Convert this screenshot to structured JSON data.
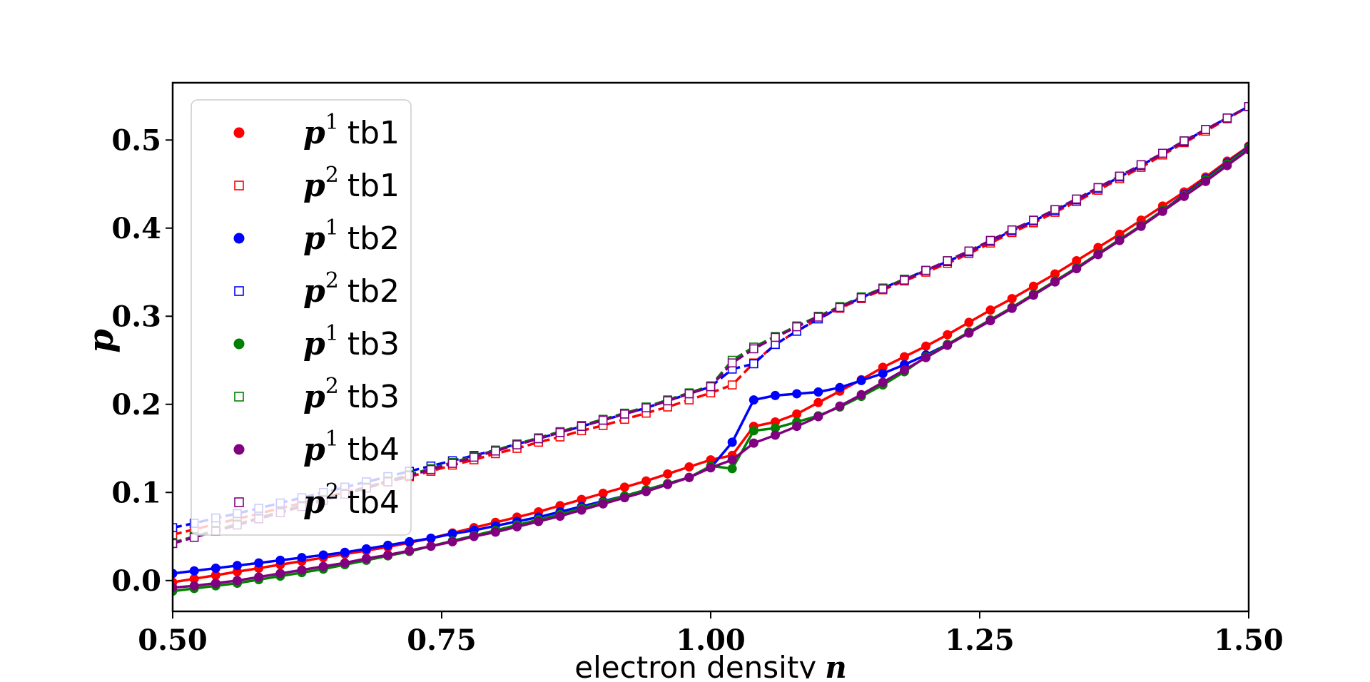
{
  "chart_data": {
    "type": "line",
    "title": "",
    "xlabel_text": "electron density",
    "xlabel_var": "n",
    "ylabel": "p",
    "xlim": [
      0.5,
      1.5
    ],
    "ylim": [
      -0.035,
      0.565
    ],
    "xticks": [
      0.5,
      0.75,
      1.0,
      1.25,
      1.5
    ],
    "xtick_labels": [
      "0.50",
      "0.75",
      "1.00",
      "1.25",
      "1.50"
    ],
    "yticks": [
      0.0,
      0.1,
      0.2,
      0.3,
      0.4,
      0.5
    ],
    "ytick_labels": [
      "0.0",
      "0.1",
      "0.2",
      "0.3",
      "0.4",
      "0.5"
    ],
    "legend_position": "upper-left",
    "series": [
      {
        "id": "p1-tb1",
        "symbol": "p",
        "superscript": "1",
        "tb": "tb1",
        "color": "#ff0000",
        "marker": "circle",
        "linestyle": "solid",
        "x": [
          0.5,
          0.52,
          0.54,
          0.56,
          0.58,
          0.6,
          0.62,
          0.64,
          0.66,
          0.68,
          0.7,
          0.72,
          0.74,
          0.76,
          0.78,
          0.8,
          0.82,
          0.84,
          0.86,
          0.88,
          0.9,
          0.92,
          0.94,
          0.96,
          0.98,
          1.0,
          1.02,
          1.04,
          1.06,
          1.08,
          1.1,
          1.12,
          1.14,
          1.16,
          1.18,
          1.2,
          1.22,
          1.24,
          1.26,
          1.28,
          1.3,
          1.32,
          1.34,
          1.36,
          1.38,
          1.4,
          1.42,
          1.44,
          1.46,
          1.48,
          1.5
        ],
        "y": [
          -0.002,
          0.002,
          0.006,
          0.01,
          0.014,
          0.018,
          0.022,
          0.026,
          0.03,
          0.034,
          0.038,
          0.043,
          0.048,
          0.054,
          0.06,
          0.066,
          0.072,
          0.078,
          0.085,
          0.092,
          0.099,
          0.106,
          0.113,
          0.121,
          0.129,
          0.137,
          0.142,
          0.175,
          0.18,
          0.189,
          0.202,
          0.215,
          0.228,
          0.242,
          0.254,
          0.266,
          0.279,
          0.293,
          0.307,
          0.32,
          0.334,
          0.348,
          0.363,
          0.378,
          0.393,
          0.409,
          0.425,
          0.441,
          0.458,
          0.476,
          0.493
        ]
      },
      {
        "id": "p2-tb1",
        "symbol": "p",
        "superscript": "2",
        "tb": "tb1",
        "color": "#ff0000",
        "marker": "square",
        "linestyle": "dashed",
        "x": [
          0.5,
          0.52,
          0.54,
          0.56,
          0.58,
          0.6,
          0.62,
          0.64,
          0.66,
          0.68,
          0.7,
          0.72,
          0.74,
          0.76,
          0.78,
          0.8,
          0.82,
          0.84,
          0.86,
          0.88,
          0.9,
          0.92,
          0.94,
          0.96,
          0.98,
          1.0,
          1.02,
          1.04,
          1.06,
          1.08,
          1.1,
          1.12,
          1.14,
          1.16,
          1.18,
          1.2,
          1.22,
          1.24,
          1.26,
          1.28,
          1.3,
          1.32,
          1.34,
          1.36,
          1.38,
          1.4,
          1.42,
          1.44,
          1.46,
          1.48,
          1.5
        ],
        "y": [
          0.052,
          0.058,
          0.064,
          0.07,
          0.076,
          0.082,
          0.088,
          0.094,
          0.1,
          0.106,
          0.112,
          0.118,
          0.124,
          0.131,
          0.137,
          0.144,
          0.15,
          0.157,
          0.163,
          0.17,
          0.176,
          0.183,
          0.19,
          0.197,
          0.205,
          0.213,
          0.222,
          0.247,
          0.268,
          0.283,
          0.297,
          0.309,
          0.32,
          0.33,
          0.34,
          0.35,
          0.36,
          0.371,
          0.383,
          0.395,
          0.406,
          0.418,
          0.43,
          0.443,
          0.456,
          0.469,
          0.483,
          0.497,
          0.51,
          0.524,
          0.538
        ]
      },
      {
        "id": "p1-tb2",
        "symbol": "p",
        "superscript": "1",
        "tb": "tb2",
        "color": "#0000ff",
        "marker": "circle",
        "linestyle": "solid",
        "x": [
          0.5,
          0.52,
          0.54,
          0.56,
          0.58,
          0.6,
          0.62,
          0.64,
          0.66,
          0.68,
          0.7,
          0.72,
          0.74,
          0.76,
          0.78,
          0.8,
          0.82,
          0.84,
          0.86,
          0.88,
          0.9,
          0.92,
          0.94,
          0.96,
          0.98,
          1.0,
          1.02,
          1.04,
          1.06,
          1.08,
          1.1,
          1.12,
          1.14,
          1.16,
          1.18,
          1.2,
          1.22,
          1.24,
          1.26,
          1.28,
          1.3,
          1.32,
          1.34,
          1.36,
          1.38,
          1.4,
          1.42,
          1.44,
          1.46,
          1.48,
          1.5
        ],
        "y": [
          0.008,
          0.011,
          0.014,
          0.017,
          0.02,
          0.023,
          0.026,
          0.029,
          0.032,
          0.036,
          0.04,
          0.044,
          0.048,
          0.053,
          0.057,
          0.062,
          0.067,
          0.072,
          0.078,
          0.084,
          0.09,
          0.096,
          0.103,
          0.11,
          0.117,
          0.128,
          0.157,
          0.205,
          0.21,
          0.212,
          0.214,
          0.219,
          0.227,
          0.235,
          0.245,
          0.256,
          0.268,
          0.281,
          0.295,
          0.309,
          0.324,
          0.339,
          0.354,
          0.37,
          0.386,
          0.403,
          0.42,
          0.438,
          0.456,
          0.474,
          0.492
        ]
      },
      {
        "id": "p2-tb2",
        "symbol": "p",
        "superscript": "2",
        "tb": "tb2",
        "color": "#0000ff",
        "marker": "square",
        "linestyle": "dashed",
        "x": [
          0.5,
          0.52,
          0.54,
          0.56,
          0.58,
          0.6,
          0.62,
          0.64,
          0.66,
          0.68,
          0.7,
          0.72,
          0.74,
          0.76,
          0.78,
          0.8,
          0.82,
          0.84,
          0.86,
          0.88,
          0.9,
          0.92,
          0.94,
          0.96,
          0.98,
          1.0,
          1.02,
          1.04,
          1.06,
          1.08,
          1.1,
          1.12,
          1.14,
          1.16,
          1.18,
          1.2,
          1.22,
          1.24,
          1.26,
          1.28,
          1.3,
          1.32,
          1.34,
          1.36,
          1.38,
          1.4,
          1.42,
          1.44,
          1.46,
          1.48,
          1.5
        ],
        "y": [
          0.06,
          0.065,
          0.071,
          0.076,
          0.082,
          0.088,
          0.094,
          0.1,
          0.106,
          0.112,
          0.118,
          0.124,
          0.13,
          0.136,
          0.142,
          0.148,
          0.155,
          0.161,
          0.168,
          0.175,
          0.182,
          0.189,
          0.196,
          0.204,
          0.212,
          0.22,
          0.24,
          0.246,
          0.268,
          0.283,
          0.297,
          0.31,
          0.321,
          0.332,
          0.342,
          0.352,
          0.362,
          0.373,
          0.385,
          0.397,
          0.408,
          0.42,
          0.432,
          0.445,
          0.458,
          0.471,
          0.485,
          0.498,
          0.512,
          0.525,
          0.538
        ]
      },
      {
        "id": "p1-tb3",
        "symbol": "p",
        "superscript": "1",
        "tb": "tb3",
        "color": "#008000",
        "marker": "circle",
        "linestyle": "solid",
        "x": [
          0.5,
          0.52,
          0.54,
          0.56,
          0.58,
          0.6,
          0.62,
          0.64,
          0.66,
          0.68,
          0.7,
          0.72,
          0.74,
          0.76,
          0.78,
          0.8,
          0.82,
          0.84,
          0.86,
          0.88,
          0.9,
          0.92,
          0.94,
          0.96,
          0.98,
          1.0,
          1.02,
          1.04,
          1.06,
          1.08,
          1.1,
          1.12,
          1.14,
          1.16,
          1.18,
          1.2,
          1.22,
          1.24,
          1.26,
          1.28,
          1.3,
          1.32,
          1.34,
          1.36,
          1.38,
          1.4,
          1.42,
          1.44,
          1.46,
          1.48,
          1.5
        ],
        "y": [
          -0.012,
          -0.009,
          -0.006,
          -0.003,
          0.001,
          0.005,
          0.009,
          0.013,
          0.018,
          0.023,
          0.028,
          0.033,
          0.039,
          0.045,
          0.051,
          0.057,
          0.063,
          0.069,
          0.075,
          0.082,
          0.089,
          0.096,
          0.103,
          0.11,
          0.117,
          0.13,
          0.127,
          0.17,
          0.173,
          0.18,
          0.187,
          0.197,
          0.209,
          0.222,
          0.237,
          0.254,
          0.268,
          0.282,
          0.296,
          0.31,
          0.325,
          0.34,
          0.355,
          0.371,
          0.387,
          0.403,
          0.42,
          0.437,
          0.455,
          0.473,
          0.491
        ]
      },
      {
        "id": "p2-tb3",
        "symbol": "p",
        "superscript": "2",
        "tb": "tb3",
        "color": "#008000",
        "marker": "square",
        "linestyle": "dashed",
        "x": [
          0.5,
          0.52,
          0.54,
          0.56,
          0.58,
          0.6,
          0.62,
          0.64,
          0.66,
          0.68,
          0.7,
          0.72,
          0.74,
          0.76,
          0.78,
          0.8,
          0.82,
          0.84,
          0.86,
          0.88,
          0.9,
          0.92,
          0.94,
          0.96,
          0.98,
          1.0,
          1.02,
          1.04,
          1.06,
          1.08,
          1.1,
          1.12,
          1.14,
          1.16,
          1.18,
          1.2,
          1.22,
          1.24,
          1.26,
          1.28,
          1.3,
          1.32,
          1.34,
          1.36,
          1.38,
          1.4,
          1.42,
          1.44,
          1.46,
          1.48,
          1.5
        ],
        "y": [
          0.043,
          0.05,
          0.057,
          0.064,
          0.071,
          0.078,
          0.085,
          0.092,
          0.099,
          0.106,
          0.113,
          0.12,
          0.127,
          0.134,
          0.141,
          0.148,
          0.155,
          0.162,
          0.169,
          0.176,
          0.183,
          0.19,
          0.197,
          0.205,
          0.213,
          0.221,
          0.25,
          0.265,
          0.277,
          0.289,
          0.3,
          0.311,
          0.322,
          0.332,
          0.342,
          0.352,
          0.363,
          0.374,
          0.386,
          0.398,
          0.409,
          0.421,
          0.433,
          0.446,
          0.459,
          0.472,
          0.485,
          0.499,
          0.512,
          0.525,
          0.538
        ]
      },
      {
        "id": "p1-tb4",
        "symbol": "p",
        "superscript": "1",
        "tb": "tb4",
        "color": "#800080",
        "marker": "circle",
        "linestyle": "solid",
        "x": [
          0.5,
          0.52,
          0.54,
          0.56,
          0.58,
          0.6,
          0.62,
          0.64,
          0.66,
          0.68,
          0.7,
          0.72,
          0.74,
          0.76,
          0.78,
          0.8,
          0.82,
          0.84,
          0.86,
          0.88,
          0.9,
          0.92,
          0.94,
          0.96,
          0.98,
          1.0,
          1.02,
          1.04,
          1.06,
          1.08,
          1.1,
          1.12,
          1.14,
          1.16,
          1.18,
          1.2,
          1.22,
          1.24,
          1.26,
          1.28,
          1.3,
          1.32,
          1.34,
          1.36,
          1.38,
          1.4,
          1.42,
          1.44,
          1.46,
          1.48,
          1.5
        ],
        "y": [
          -0.008,
          -0.006,
          -0.003,
          0.0,
          0.004,
          0.008,
          0.012,
          0.016,
          0.02,
          0.025,
          0.029,
          0.034,
          0.039,
          0.044,
          0.05,
          0.055,
          0.061,
          0.067,
          0.073,
          0.08,
          0.087,
          0.094,
          0.101,
          0.109,
          0.117,
          0.128,
          0.137,
          0.156,
          0.165,
          0.175,
          0.186,
          0.198,
          0.211,
          0.225,
          0.239,
          0.253,
          0.267,
          0.281,
          0.295,
          0.309,
          0.324,
          0.339,
          0.354,
          0.37,
          0.386,
          0.402,
          0.419,
          0.436,
          0.453,
          0.471,
          0.489
        ]
      },
      {
        "id": "p2-tb4",
        "symbol": "p",
        "superscript": "2",
        "tb": "tb4",
        "color": "#800080",
        "marker": "square",
        "linestyle": "dashed",
        "x": [
          0.5,
          0.52,
          0.54,
          0.56,
          0.58,
          0.6,
          0.62,
          0.64,
          0.66,
          0.68,
          0.7,
          0.72,
          0.74,
          0.76,
          0.78,
          0.8,
          0.82,
          0.84,
          0.86,
          0.88,
          0.9,
          0.92,
          0.94,
          0.96,
          0.98,
          1.0,
          1.02,
          1.04,
          1.06,
          1.08,
          1.1,
          1.12,
          1.14,
          1.16,
          1.18,
          1.2,
          1.22,
          1.24,
          1.26,
          1.28,
          1.3,
          1.32,
          1.34,
          1.36,
          1.38,
          1.4,
          1.42,
          1.44,
          1.46,
          1.48,
          1.5
        ],
        "y": [
          0.042,
          0.049,
          0.056,
          0.063,
          0.07,
          0.077,
          0.084,
          0.091,
          0.098,
          0.105,
          0.112,
          0.119,
          0.126,
          0.133,
          0.14,
          0.147,
          0.154,
          0.161,
          0.168,
          0.175,
          0.182,
          0.189,
          0.196,
          0.204,
          0.212,
          0.22,
          0.247,
          0.263,
          0.276,
          0.288,
          0.299,
          0.31,
          0.321,
          0.331,
          0.341,
          0.352,
          0.363,
          0.374,
          0.386,
          0.398,
          0.409,
          0.421,
          0.433,
          0.446,
          0.459,
          0.472,
          0.485,
          0.499,
          0.512,
          0.525,
          0.538
        ]
      }
    ]
  }
}
